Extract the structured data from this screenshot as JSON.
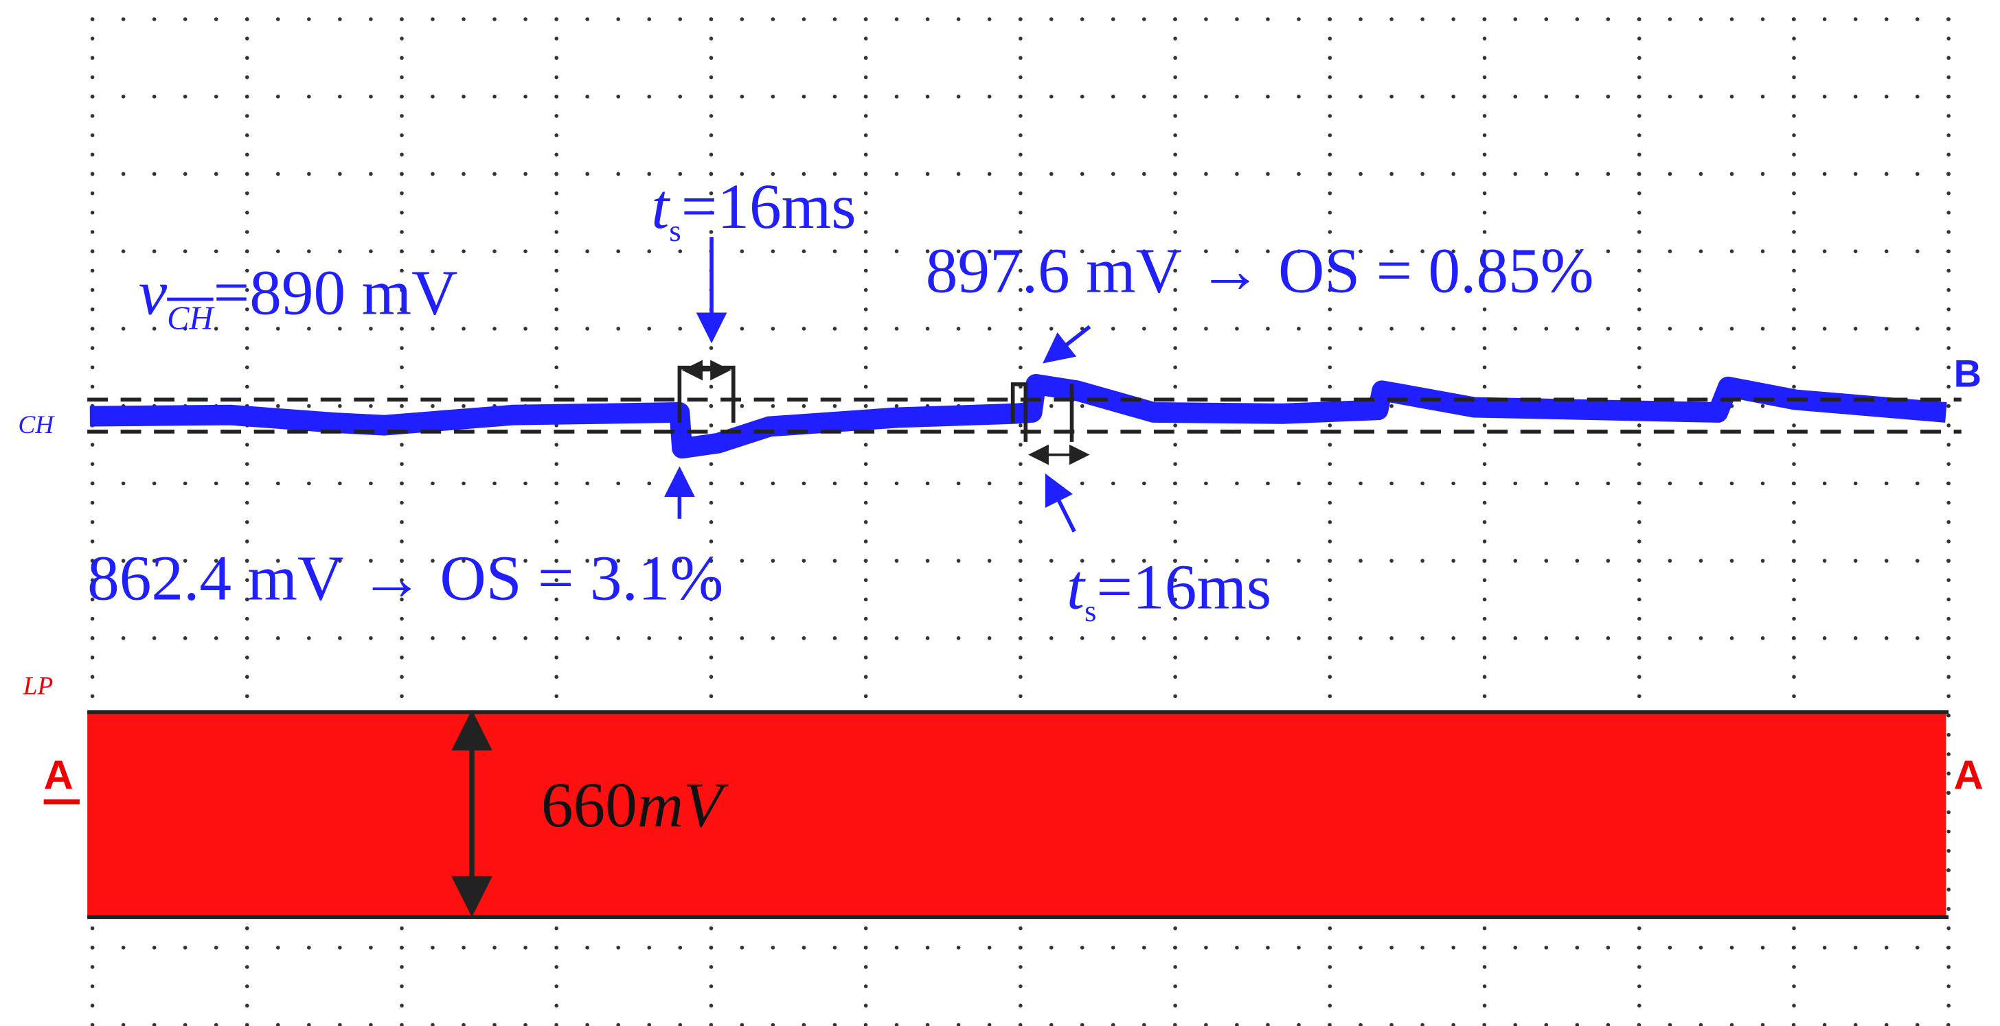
{
  "channel_labels": {
    "ch": "CH",
    "lp": "LP",
    "marker_b": "B",
    "marker_a_left": "A",
    "marker_a_right": "A"
  },
  "annotations": {
    "reference": {
      "symbol": "v",
      "subscript": "CH",
      "text": "=890 mV"
    },
    "settling_top": {
      "symbol": "t",
      "subscript": "s",
      "text": "=16ms"
    },
    "overshoot_high": {
      "value": "897.6 mV",
      "arrow": "→",
      "text": "OS = 0.85%"
    },
    "overshoot_low": {
      "value": "862.4 mV",
      "arrow": "→",
      "text": "OS = 3.1%"
    },
    "settling_bottom": {
      "symbol": "t",
      "subscript": "s",
      "text": "=16ms"
    },
    "ripple": {
      "value": "660",
      "unit": "mV"
    }
  }
}
